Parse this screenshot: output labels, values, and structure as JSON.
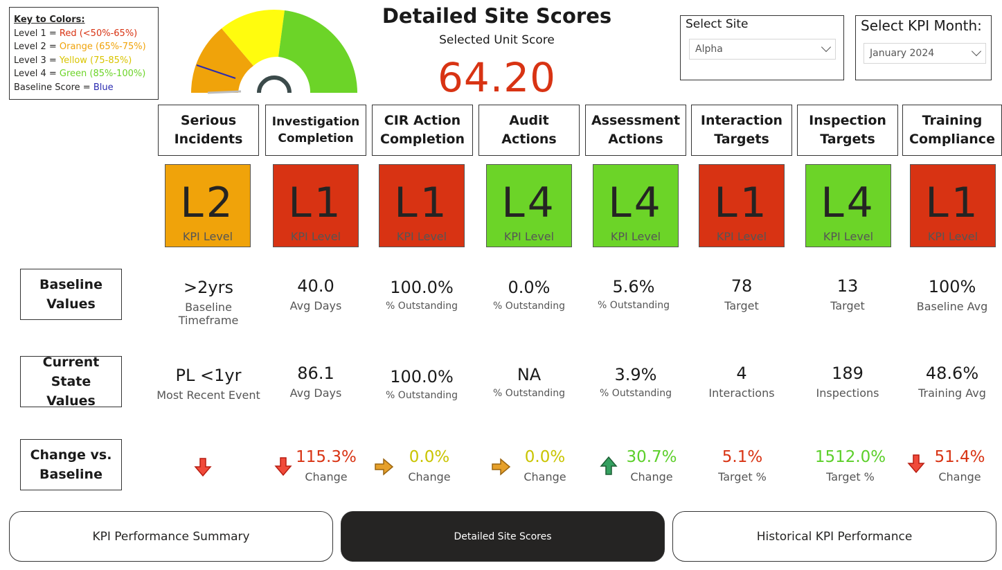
{
  "key": {
    "title": "Key to Colors:",
    "levels": [
      {
        "label": "Level 1 = ",
        "desc": "Red (<50%-65%)",
        "color": "#d83313"
      },
      {
        "label": "Level 2 = ",
        "desc": "Orange (65%-75%)",
        "color": "#f0a30a"
      },
      {
        "label": "Level 3 = ",
        "desc": "Yellow (75-85%)",
        "color": "#d9c400"
      },
      {
        "label": "Level 4 = ",
        "desc": "Green (85%-100%)",
        "color": "#6cd428"
      },
      {
        "label": "Baseline Score = ",
        "desc": "Blue",
        "color": "#2b2bb0"
      }
    ]
  },
  "header": {
    "title": "Detailed Site Scores",
    "subtitle": "Selected Unit Score",
    "score": "64.20"
  },
  "gauge": {
    "value_fraction": 0.642,
    "baseline_fraction": 0.14
  },
  "site_slicer": {
    "title": "Select Site",
    "value": "Alpha"
  },
  "month_slicer": {
    "title": "Select KPI Month:",
    "value": "January 2024"
  },
  "kpis": [
    {
      "header": "Serious\nIncidents",
      "level": "L2",
      "level_label": "KPI Level",
      "tile_color": "#f0a30a",
      "baseline_value": ">2yrs",
      "baseline_unit": "Baseline Timeframe",
      "current_value": "PL <1yr",
      "current_unit": "Most Recent Event",
      "change_value": "",
      "change_unit": "",
      "change_color": "#d83313",
      "arrow": "down"
    },
    {
      "header": "Investigation\nCompletion",
      "level": "L1",
      "level_label": "KPI Level",
      "tile_color": "#d83313",
      "baseline_value": "40.0",
      "baseline_unit": "Avg Days",
      "current_value": "86.1",
      "current_unit": "Avg Days",
      "change_value": "115.3%",
      "change_unit": "Change",
      "change_color": "#d83313",
      "arrow": "down"
    },
    {
      "header": "CIR Action\nCompletion",
      "level": "L1",
      "level_label": "KPI Level",
      "tile_color": "#d83313",
      "baseline_value": "100.0%",
      "baseline_unit": "% Outstanding",
      "current_value": "100.0%",
      "current_unit": "% Outstanding",
      "change_value": "0.0%",
      "change_unit": "Change",
      "change_color": "#c9c400",
      "arrow": "right"
    },
    {
      "header": "Audit\nActions",
      "level": "L4",
      "level_label": "KPI Level",
      "tile_color": "#6cd428",
      "baseline_value": "0.0%",
      "baseline_unit": "% Outstanding",
      "current_value": "NA",
      "current_unit": "% Outstanding",
      "change_value": "0.0%",
      "change_unit": "Change",
      "change_color": "#c9c400",
      "arrow": "right"
    },
    {
      "header": "Assessment\nActions",
      "level": "L4",
      "level_label": "KPI Level",
      "tile_color": "#6cd428",
      "baseline_value": "5.6%",
      "baseline_unit": "% Outstanding",
      "current_value": "3.9%",
      "current_unit": "% Outstanding",
      "change_value": "30.7%",
      "change_unit": "Change",
      "change_color": "#5ccf2a",
      "arrow": "up"
    },
    {
      "header": "Interaction\nTargets",
      "level": "L1",
      "level_label": "KPI Level",
      "tile_color": "#d83313",
      "baseline_value": "78",
      "baseline_unit": "Target",
      "current_value": "4",
      "current_unit": "Interactions",
      "change_value": "5.1%",
      "change_unit": "Target %",
      "change_color": "#d83313",
      "arrow": ""
    },
    {
      "header": "Inspection\nTargets",
      "level": "L4",
      "level_label": "KPI Level",
      "tile_color": "#6cd428",
      "baseline_value": "13",
      "baseline_unit": "Target",
      "current_value": "189",
      "current_unit": "Inspections",
      "change_value": "1512.0%",
      "change_unit": "Target %",
      "change_color": "#5ccf2a",
      "arrow": ""
    },
    {
      "header": "Training\nCompliance",
      "level": "L1",
      "level_label": "KPI Level",
      "tile_color": "#d83313",
      "baseline_value": "100%",
      "baseline_unit": "Baseline Avg",
      "current_value": "48.6%",
      "current_unit": "Training Avg",
      "change_value": "51.4%",
      "change_unit": "Change",
      "change_color": "#d83313",
      "arrow": "down"
    }
  ],
  "row_labels": {
    "baseline": "Baseline\nValues",
    "current": "Current State\nValues",
    "change": "Change vs.\nBaseline"
  },
  "nav": [
    {
      "label": "KPI Performance Summary",
      "active": false
    },
    {
      "label": "Detailed Site Scores",
      "active": true
    },
    {
      "label": "Historical KPI Performance",
      "active": false
    }
  ],
  "colors": {
    "red": "#d83313",
    "orange": "#f0a30a",
    "yellow": "#fffc0e",
    "green": "#6cd428",
    "blue": "#2b2bb0"
  }
}
